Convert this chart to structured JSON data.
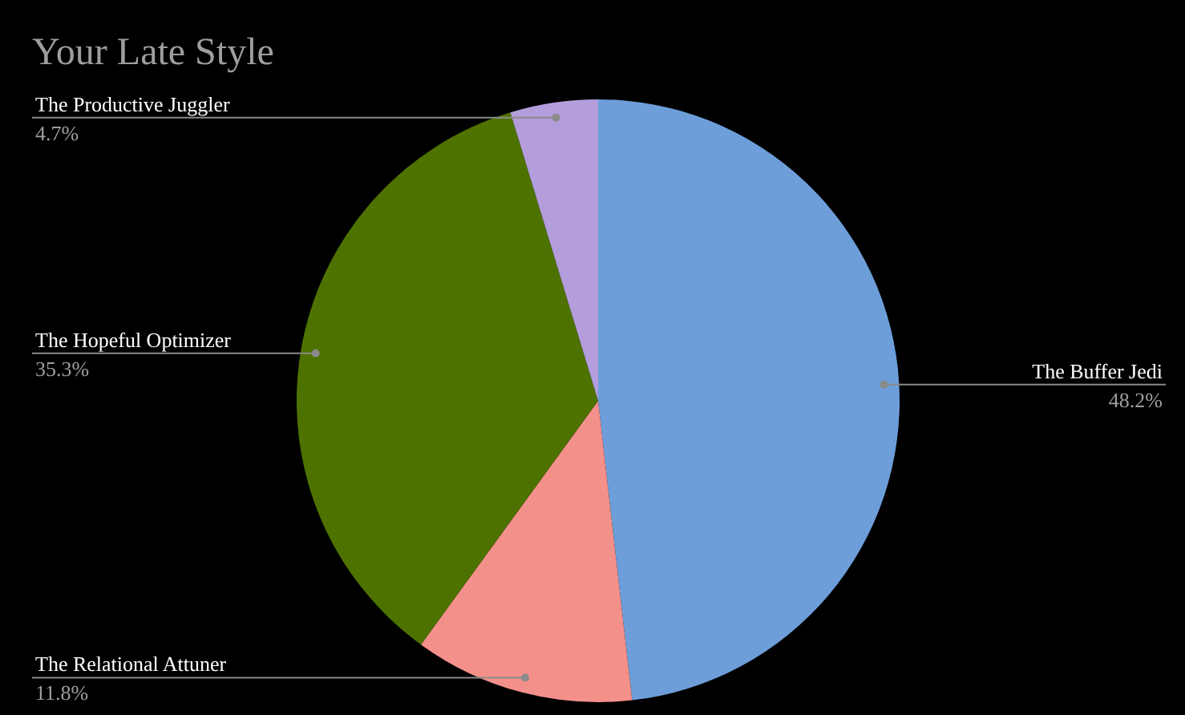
{
  "chart_data": {
    "type": "pie",
    "title": "Your Late Style",
    "categories": [
      "The Buffer Jedi",
      "The Relational Attuner",
      "The Hopeful Optimizer",
      "The Productive Juggler"
    ],
    "values": [
      48.2,
      11.8,
      35.3,
      4.7
    ],
    "colors": [
      "#6d9eda",
      "#f4908a",
      "#4e7200",
      "#b39ddb"
    ],
    "value_labels": [
      "48.2%",
      "11.8%",
      "35.3%",
      "4.7%"
    ],
    "legend": false
  }
}
